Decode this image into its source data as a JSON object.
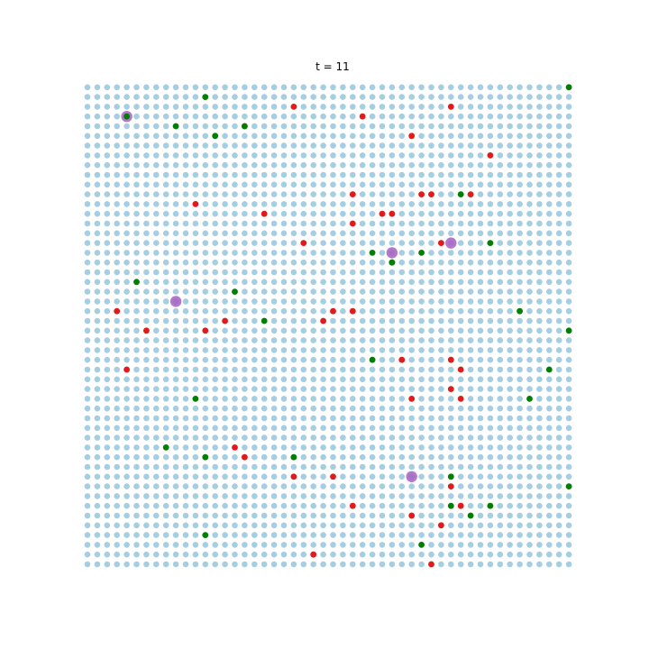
{
  "chart_data": {
    "type": "scatter",
    "title": "t = 11",
    "xlabel": "",
    "ylabel": "",
    "axes_visible": false,
    "grid": {
      "cols": 50,
      "rows": 50,
      "xlim": [
        0,
        49
      ],
      "ylim": [
        0,
        49
      ]
    },
    "colors": {
      "background": "#a6cee3",
      "red": "#e31a1c",
      "green": "#008000",
      "highlight": "#a65fc2"
    },
    "series": [
      {
        "group": "red",
        "points": [
          [
            28,
            46
          ],
          [
            21,
            47
          ],
          [
            16,
            45
          ],
          [
            33,
            44
          ],
          [
            41,
            42
          ],
          [
            27,
            38
          ],
          [
            34,
            38
          ],
          [
            35,
            38
          ],
          [
            39,
            38
          ],
          [
            11,
            37
          ],
          [
            18,
            36
          ],
          [
            30,
            36
          ],
          [
            27,
            35
          ],
          [
            22,
            33
          ],
          [
            36,
            33
          ],
          [
            3,
            26
          ],
          [
            25,
            26
          ],
          [
            27,
            26
          ],
          [
            14,
            25
          ],
          [
            24,
            25
          ],
          [
            6,
            24
          ],
          [
            12,
            24
          ],
          [
            31,
            36
          ],
          [
            37,
            47
          ],
          [
            4,
            20
          ],
          [
            32,
            21
          ],
          [
            37,
            21
          ],
          [
            38,
            20
          ],
          [
            37,
            18
          ],
          [
            38,
            17
          ],
          [
            33,
            17
          ],
          [
            15,
            12
          ],
          [
            16,
            11
          ],
          [
            21,
            9
          ],
          [
            25,
            9
          ],
          [
            37,
            8
          ],
          [
            38,
            6
          ],
          [
            27,
            6
          ],
          [
            33,
            5
          ],
          [
            36,
            4
          ],
          [
            23,
            1
          ],
          [
            35,
            0
          ]
        ]
      },
      {
        "group": "green",
        "points": [
          [
            49,
            49
          ],
          [
            12,
            48
          ],
          [
            4,
            46
          ],
          [
            9,
            45
          ],
          [
            16,
            45
          ],
          [
            13,
            44
          ],
          [
            38,
            38
          ],
          [
            29,
            32
          ],
          [
            31,
            31
          ],
          [
            34,
            32
          ],
          [
            41,
            33
          ],
          [
            5,
            29
          ],
          [
            15,
            28
          ],
          [
            44,
            26
          ],
          [
            18,
            25
          ],
          [
            49,
            24
          ],
          [
            29,
            21
          ],
          [
            47,
            20
          ],
          [
            11,
            17
          ],
          [
            45,
            17
          ],
          [
            8,
            12
          ],
          [
            12,
            11
          ],
          [
            21,
            11
          ],
          [
            37,
            9
          ],
          [
            49,
            8
          ],
          [
            37,
            6
          ],
          [
            41,
            6
          ],
          [
            12,
            3
          ],
          [
            34,
            2
          ],
          [
            39,
            5
          ],
          [
            31,
            31
          ]
        ]
      },
      {
        "group": "highlight",
        "points": [
          [
            4,
            46
          ],
          [
            31,
            32
          ],
          [
            37,
            33
          ],
          [
            9,
            27
          ],
          [
            33,
            9
          ]
        ]
      }
    ]
  }
}
